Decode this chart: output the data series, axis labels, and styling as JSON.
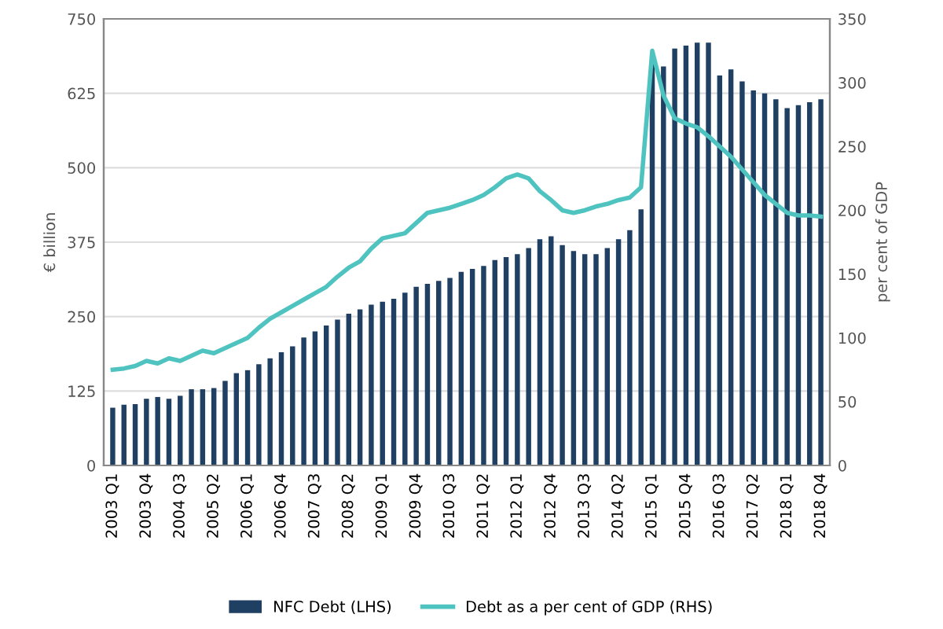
{
  "chart_data": {
    "type": "bar",
    "ylabel": "€ billion",
    "y2label": "per cent of GDP",
    "categories": [
      "2003 Q1",
      null,
      null,
      "2003 Q4",
      null,
      null,
      "2004 Q3",
      null,
      null,
      "2005 Q2",
      null,
      null,
      "2006 Q1",
      null,
      null,
      "2006 Q4",
      null,
      null,
      "2007 Q3",
      null,
      null,
      "2008 Q2",
      null,
      null,
      "2009 Q1",
      null,
      null,
      "2009 Q4",
      null,
      null,
      "2010 Q3",
      null,
      null,
      "2011 Q2",
      null,
      null,
      "2012 Q1",
      null,
      null,
      "2012 Q4",
      null,
      null,
      "2013 Q3",
      null,
      null,
      "2014 Q2",
      null,
      null,
      "2015 Q1",
      null,
      null,
      "2015 Q4",
      null,
      null,
      "2016 Q3",
      null,
      null,
      "2017 Q2",
      null,
      null,
      "2018 Q1",
      null,
      null,
      "2018 Q4"
    ],
    "series": [
      {
        "name": "NFC Debt (LHS)",
        "color": "#1f3f63",
        "values": [
          97,
          102,
          103,
          112,
          115,
          112,
          117,
          128,
          128,
          130,
          142,
          155,
          160,
          170,
          180,
          190,
          200,
          215,
          225,
          235,
          245,
          255,
          262,
          270,
          275,
          280,
          290,
          300,
          305,
          310,
          315,
          325,
          330,
          335,
          345,
          350,
          355,
          365,
          380,
          385,
          370,
          360,
          355,
          355,
          365,
          380,
          395,
          430,
          680,
          670,
          700,
          705,
          710,
          710,
          655,
          665,
          645,
          630,
          625,
          615,
          600,
          605,
          610,
          615
        ]
      },
      {
        "name": "Debt as a per cent of GDP (RHS)",
        "type": "line",
        "axis": "y2",
        "color": "#4fc3c0",
        "values": [
          75,
          76,
          78,
          82,
          80,
          84,
          82,
          86,
          90,
          88,
          92,
          96,
          100,
          108,
          115,
          120,
          125,
          130,
          135,
          140,
          148,
          155,
          160,
          170,
          178,
          180,
          182,
          190,
          198,
          200,
          202,
          205,
          208,
          212,
          218,
          225,
          228,
          225,
          215,
          208,
          200,
          198,
          200,
          203,
          205,
          208,
          210,
          218,
          325,
          290,
          272,
          268,
          265,
          258,
          250,
          242,
          232,
          222,
          212,
          205,
          198,
          196,
          196,
          195
        ]
      }
    ],
    "ylim": [
      0,
      750
    ],
    "yticks": [
      0,
      125,
      250,
      375,
      500,
      625,
      750
    ],
    "y2lim": [
      0,
      350
    ],
    "y2ticks": [
      0,
      50,
      100,
      150,
      200,
      250,
      300,
      350
    ],
    "grid": "y",
    "legend": "bottom"
  }
}
